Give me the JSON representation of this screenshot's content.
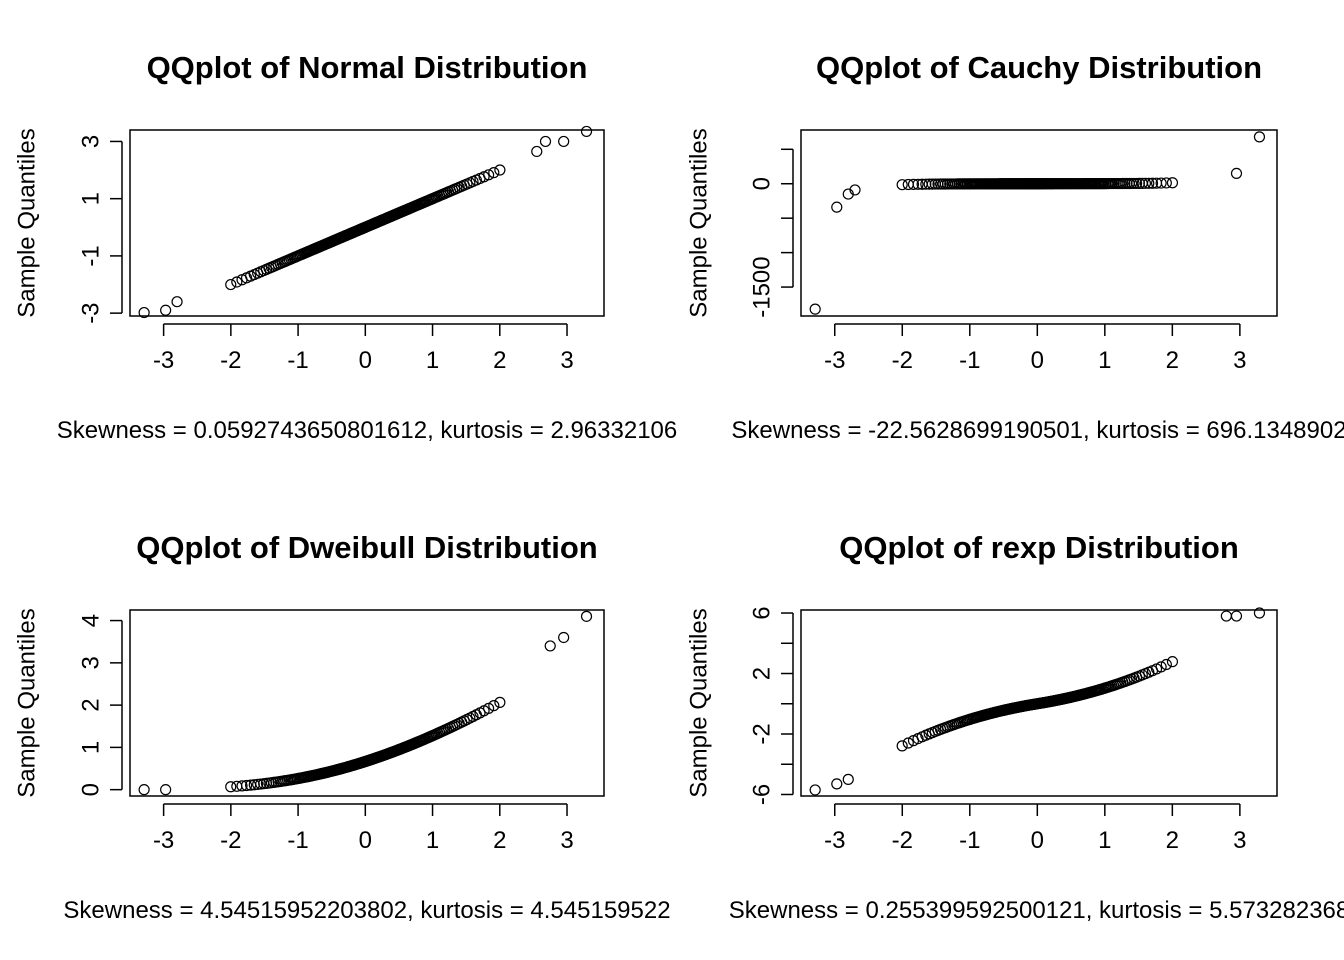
{
  "chart_data": [
    {
      "type": "scatter",
      "title": "QQplot of Normal Distribution",
      "ylabel": "Sample Quantiles",
      "xlabel": "Skewness = 0.0592743650801612, kurtosis = 2.96332106",
      "xticks": [
        -3,
        -2,
        -1,
        0,
        1,
        2,
        3
      ],
      "yticks": [
        -3,
        -1,
        1,
        3
      ],
      "xlim": [
        -3.5,
        3.55
      ],
      "ylim": [
        -3.1,
        3.4
      ],
      "shape": "linear",
      "n_points": 180,
      "outliers": [
        [
          -3.29,
          -2.98
        ],
        [
          -2.97,
          -2.9
        ],
        [
          -2.8,
          -2.6
        ],
        [
          2.55,
          2.65
        ],
        [
          2.68,
          3.0
        ],
        [
          2.95,
          3.0
        ],
        [
          3.29,
          3.35
        ]
      ]
    },
    {
      "type": "scatter",
      "title": "QQplot of Cauchy Distribution",
      "ylabel": "Sample Quantiles",
      "xlabel": "Skewness = -22.5628699190501, kurtosis = 696.1348902",
      "xticks": [
        -3,
        -2,
        -1,
        0,
        1,
        2,
        3
      ],
      "yticks": [
        -1500,
        -1000,
        -500,
        0,
        500
      ],
      "yticklabels": [
        "-1500",
        "",
        "",
        "0",
        ""
      ],
      "xlim": [
        -3.5,
        3.55
      ],
      "ylim": [
        -1920,
        780
      ],
      "shape": "cauchy",
      "n_points": 180,
      "outliers": [
        [
          -3.29,
          -1820
        ],
        [
          -2.97,
          -340
        ],
        [
          -2.8,
          -150
        ],
        [
          -2.7,
          -90
        ],
        [
          2.95,
          150
        ],
        [
          3.29,
          680
        ]
      ]
    },
    {
      "type": "scatter",
      "title": "QQplot of Dweibull Distribution",
      "ylabel": "Sample Quantiles",
      "xlabel": "Skewness = 4.54515952203802, kurtosis = 4.545159522",
      "xticks": [
        -3,
        -2,
        -1,
        0,
        1,
        2,
        3
      ],
      "yticks": [
        0,
        1,
        2,
        3,
        4
      ],
      "xlim": [
        -3.5,
        3.55
      ],
      "ylim": [
        -0.15,
        4.25
      ],
      "shape": "weibull",
      "n_points": 180,
      "outliers": [
        [
          -3.29,
          0.0
        ],
        [
          -2.97,
          0.0
        ],
        [
          2.75,
          3.4
        ],
        [
          2.95,
          3.6
        ],
        [
          3.29,
          4.1
        ]
      ]
    },
    {
      "type": "scatter",
      "title": "QQplot of rexp Distribution",
      "ylabel": "Sample Quantiles",
      "xlabel": "Skewness = 0.255399592500121, kurtosis = 5.573282368",
      "xticks": [
        -3,
        -2,
        -1,
        0,
        1,
        2,
        3
      ],
      "yticks": [
        -6,
        -4,
        -2,
        0,
        2,
        4,
        6
      ],
      "yticklabels": [
        "-6",
        "",
        "-2",
        "",
        "2",
        "",
        "6"
      ],
      "xlim": [
        -3.5,
        3.55
      ],
      "ylim": [
        -6.1,
        6.2
      ],
      "shape": "laplace",
      "n_points": 180,
      "outliers": [
        [
          -3.29,
          -5.7
        ],
        [
          -2.97,
          -5.3
        ],
        [
          -2.8,
          -5.0
        ],
        [
          2.8,
          5.8
        ],
        [
          2.95,
          5.8
        ],
        [
          3.29,
          6.0
        ]
      ]
    }
  ]
}
